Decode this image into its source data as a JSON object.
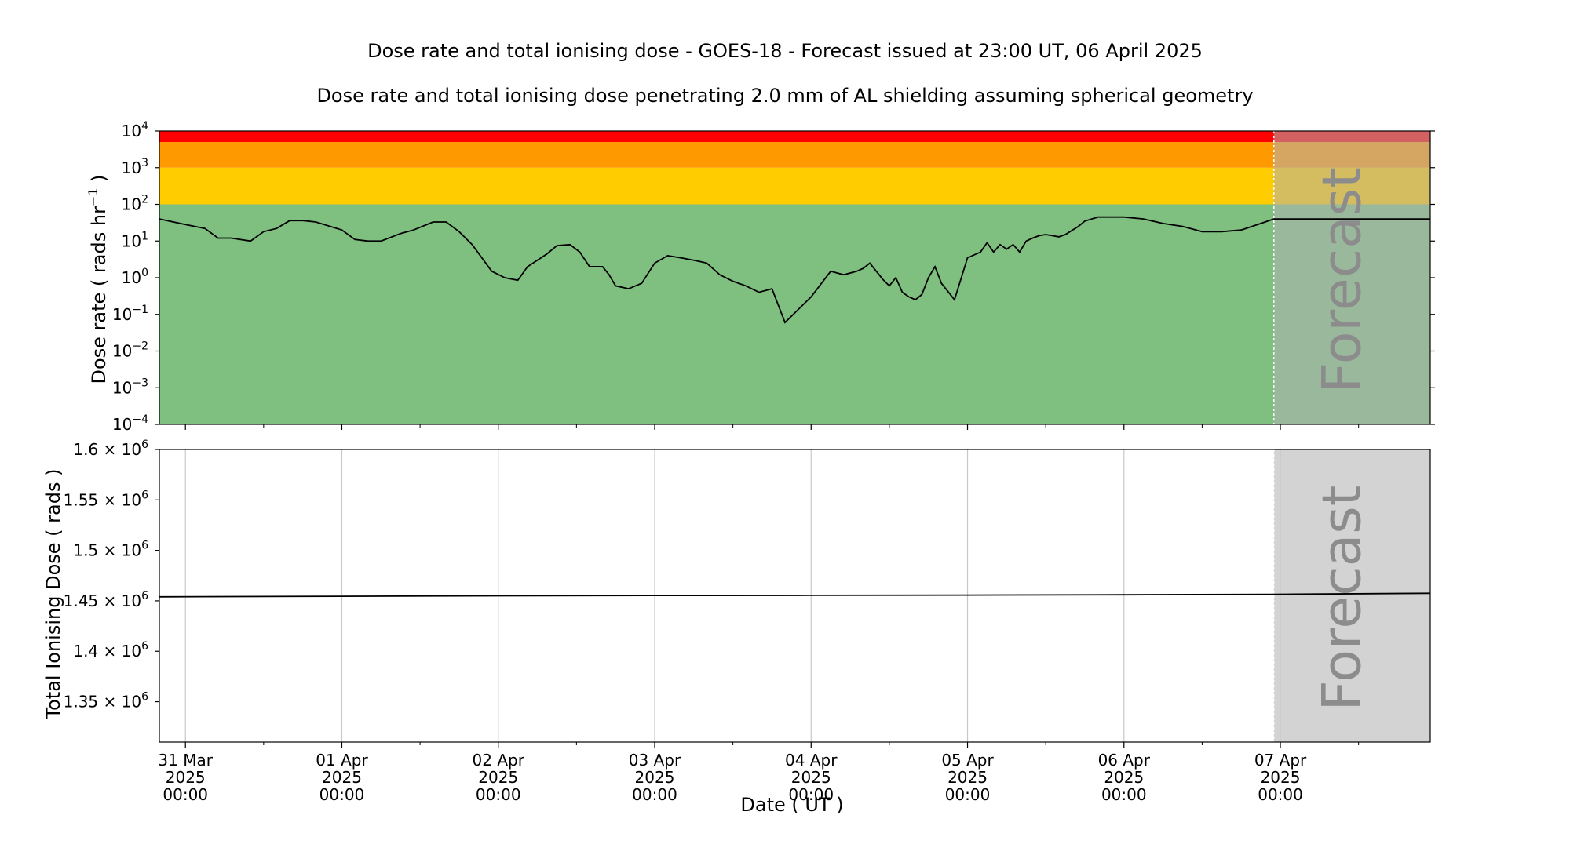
{
  "title": "Dose rate and total ionising dose - GOES-18 - Forecast issued at 23:00 UT, 06 April 2025",
  "subtitle": "Dose rate and total ionising dose penetrating 2.0 mm of AL shielding assuming spherical geometry",
  "forecast_label": "Forecast",
  "xlabel": "Date ( UT )",
  "x_ticks": [
    {
      "value": "2025-03-31T00:00",
      "line1": "31 Mar",
      "line2": "2025",
      "line3": "00:00"
    },
    {
      "value": "2025-04-01T00:00",
      "line1": "01 Apr",
      "line2": "2025",
      "line3": "00:00"
    },
    {
      "value": "2025-04-02T00:00",
      "line1": "02 Apr",
      "line2": "2025",
      "line3": "00:00"
    },
    {
      "value": "2025-04-03T00:00",
      "line1": "03 Apr",
      "line2": "2025",
      "line3": "00:00"
    },
    {
      "value": "2025-04-04T00:00",
      "line1": "04 Apr",
      "line2": "2025",
      "line3": "00:00"
    },
    {
      "value": "2025-04-05T00:00",
      "line1": "05 Apr",
      "line2": "2025",
      "line3": "00:00"
    },
    {
      "value": "2025-04-06T00:00",
      "line1": "06 Apr",
      "line2": "2025",
      "line3": "00:00"
    },
    {
      "value": "2025-04-07T00:00",
      "line1": "07 Apr",
      "line2": "2025",
      "line3": "00:00"
    }
  ],
  "colors": {
    "band_green": "#7fc080",
    "band_yellow": "#ffcc00",
    "band_orange": "#ff9900",
    "band_red": "#ff0000",
    "forecast_overlay": "#b0b0b0",
    "forecast_text": "#8c8c8c",
    "line": "#000000",
    "grid": "#c8c8c8"
  },
  "chart_data": [
    {
      "type": "line",
      "name": "dose-rate",
      "ylabel": "Dose rate ( rads hr",
      "ylabel_exponent": "−1",
      "ylabel_suffix": " )",
      "yscale": "log",
      "ylim": [
        0.0001,
        10000
      ],
      "y_ticks": [
        {
          "base": "10",
          "exp": "4"
        },
        {
          "base": "10",
          "exp": "3"
        },
        {
          "base": "10",
          "exp": "2"
        },
        {
          "base": "10",
          "exp": "1"
        },
        {
          "base": "10",
          "exp": "0"
        },
        {
          "base": "10",
          "exp": "−1"
        },
        {
          "base": "10",
          "exp": "−2"
        },
        {
          "base": "10",
          "exp": "−3"
        },
        {
          "base": "10",
          "exp": "−4"
        }
      ],
      "xlim": [
        "2025-03-30T20:00",
        "2025-04-07T23:00"
      ],
      "forecast_start": "2025-04-06T23:00",
      "bands": [
        {
          "from": 0.0001,
          "to": 100,
          "color": "#7fc080"
        },
        {
          "from": 100,
          "to": 1000,
          "color": "#ffcc00"
        },
        {
          "from": 1000,
          "to": 5000,
          "color": "#ff9900"
        },
        {
          "from": 5000,
          "to": 10000,
          "color": "#ff0000"
        }
      ],
      "grid": false,
      "x": [
        "2025-03-30T20:00",
        "2025-03-31T00:00",
        "2025-03-31T03:00",
        "2025-03-31T05:00",
        "2025-03-31T07:00",
        "2025-03-31T10:00",
        "2025-03-31T12:00",
        "2025-03-31T14:00",
        "2025-03-31T16:00",
        "2025-03-31T18:00",
        "2025-03-31T20:00",
        "2025-04-01T00:00",
        "2025-04-01T02:00",
        "2025-04-01T04:00",
        "2025-04-01T06:00",
        "2025-04-01T09:00",
        "2025-04-01T11:00",
        "2025-04-01T14:00",
        "2025-04-01T16:00",
        "2025-04-01T18:00",
        "2025-04-01T20:00",
        "2025-04-01T23:00",
        "2025-04-02T01:00",
        "2025-04-02T03:00",
        "2025-04-02T04:30",
        "2025-04-02T06:00",
        "2025-04-02T07:30",
        "2025-04-02T09:00",
        "2025-04-02T11:00",
        "2025-04-02T12:30",
        "2025-04-02T14:00",
        "2025-04-02T16:00",
        "2025-04-02T17:00",
        "2025-04-02T18:00",
        "2025-04-02T20:00",
        "2025-04-02T22:00",
        "2025-04-03T00:00",
        "2025-04-03T02:00",
        "2025-04-03T04:00",
        "2025-04-03T06:00",
        "2025-04-03T08:00",
        "2025-04-03T10:00",
        "2025-04-03T12:00",
        "2025-04-03T14:00",
        "2025-04-03T16:00",
        "2025-04-03T18:00",
        "2025-04-03T20:00",
        "2025-04-04T00:00",
        "2025-04-04T03:00",
        "2025-04-04T05:00",
        "2025-04-04T07:00",
        "2025-04-04T08:00",
        "2025-04-04T09:00",
        "2025-04-04T10:00",
        "2025-04-04T11:00",
        "2025-04-04T12:00",
        "2025-04-04T13:00",
        "2025-04-04T14:00",
        "2025-04-04T15:00",
        "2025-04-04T16:00",
        "2025-04-04T17:00",
        "2025-04-04T18:00",
        "2025-04-04T19:00",
        "2025-04-04T20:00",
        "2025-04-04T22:00",
        "2025-04-05T00:00",
        "2025-04-05T02:00",
        "2025-04-05T03:00",
        "2025-04-05T04:00",
        "2025-04-05T05:00",
        "2025-04-05T06:00",
        "2025-04-05T07:00",
        "2025-04-05T08:00",
        "2025-04-05T09:00",
        "2025-04-05T10:00",
        "2025-04-05T11:00",
        "2025-04-05T12:00",
        "2025-04-05T13:00",
        "2025-04-05T14:00",
        "2025-04-05T15:00",
        "2025-04-05T17:00",
        "2025-04-05T18:00",
        "2025-04-05T20:00",
        "2025-04-06T00:00",
        "2025-04-06T03:00",
        "2025-04-06T06:00",
        "2025-04-06T09:00",
        "2025-04-06T12:00",
        "2025-04-06T15:00",
        "2025-04-06T18:00",
        "2025-04-06T21:00",
        "2025-04-06T23:00",
        "2025-04-07T02:00",
        "2025-04-07T05:00",
        "2025-04-07T08:00",
        "2025-04-07T11:00",
        "2025-04-07T14:00",
        "2025-04-07T17:00",
        "2025-04-07T20:00",
        "2025-04-07T23:00"
      ],
      "y": [
        40,
        28,
        22,
        12,
        12,
        10,
        18,
        22,
        36,
        36,
        33,
        20,
        11,
        10,
        10,
        16,
        20,
        33,
        33,
        18,
        8,
        1.5,
        1.0,
        0.85,
        2.0,
        3.0,
        4.5,
        7.5,
        8.0,
        5.0,
        2.0,
        2.0,
        1.2,
        0.6,
        0.5,
        0.7,
        2.5,
        4.0,
        3.5,
        3.0,
        2.5,
        1.2,
        0.8,
        0.6,
        0.4,
        0.5,
        0.06,
        0.3,
        1.5,
        1.2,
        1.5,
        1.8,
        2.5,
        1.5,
        0.9,
        0.6,
        1.0,
        0.4,
        0.3,
        0.25,
        0.35,
        1.0,
        2.0,
        0.7,
        0.25,
        3.5,
        5.0,
        9.0,
        5.0,
        8.0,
        6.0,
        8.0,
        5.0,
        10,
        12,
        14,
        15,
        14,
        13,
        15,
        25,
        35,
        45,
        45,
        40,
        30,
        25,
        18,
        18,
        20,
        30,
        40,
        40,
        40,
        40,
        40,
        40,
        40,
        40,
        40
      ]
    },
    {
      "type": "line",
      "name": "total-ionising-dose",
      "ylabel": "Total Ionising Dose ( rads )",
      "yscale": "linear",
      "ylim": [
        1310000,
        1600000
      ],
      "y_ticks": [
        {
          "value": 1600000,
          "label": "1.6 × 10",
          "exp": "6"
        },
        {
          "value": 1550000,
          "label": "1.55 × 10",
          "exp": "6"
        },
        {
          "value": 1500000,
          "label": "1.5 × 10",
          "exp": "6"
        },
        {
          "value": 1450000,
          "label": "1.45 × 10",
          "exp": "6"
        },
        {
          "value": 1400000,
          "label": "1.4 × 10",
          "exp": "6"
        },
        {
          "value": 1350000,
          "label": "1.35 × 10",
          "exp": "6"
        }
      ],
      "xlim": [
        "2025-03-30T20:00",
        "2025-04-07T23:00"
      ],
      "forecast_start": "2025-04-06T23:00",
      "grid": true,
      "x": [
        "2025-03-30T20:00",
        "2025-04-01T00:00",
        "2025-04-02T00:00",
        "2025-04-03T00:00",
        "2025-04-04T00:00",
        "2025-04-05T00:00",
        "2025-04-06T00:00",
        "2025-04-06T23:00",
        "2025-04-07T23:00"
      ],
      "y": [
        1454000,
        1454500,
        1455000,
        1455300,
        1455500,
        1455700,
        1456000,
        1456500,
        1457500
      ]
    }
  ]
}
